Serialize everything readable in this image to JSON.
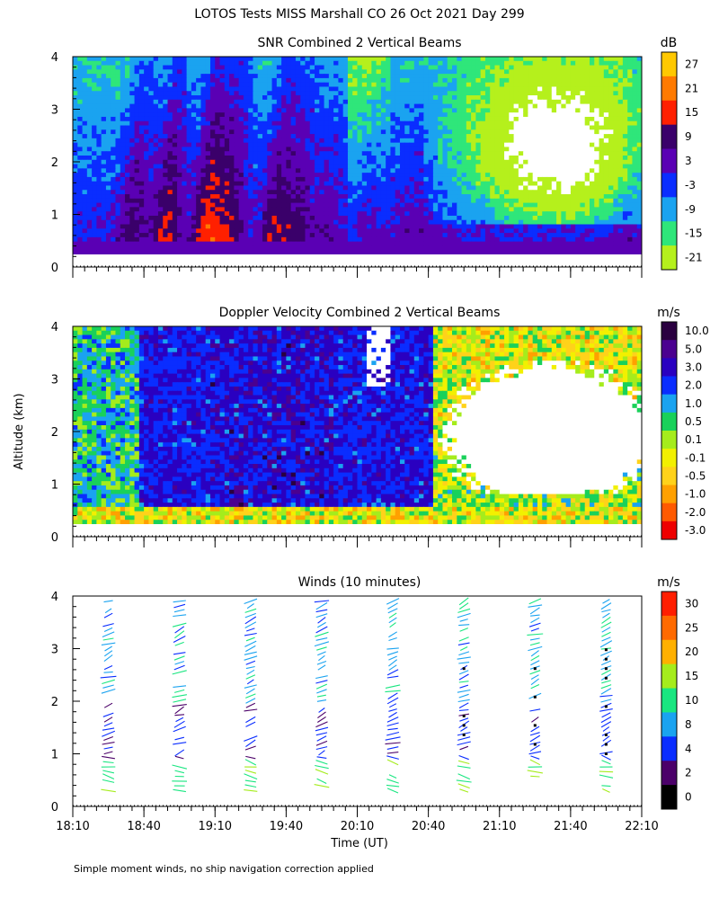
{
  "title": "LOTOS Tests MISS Marshall CO  26 Oct 2021 Day 299",
  "ylabel": "Altitude (km)",
  "xlabel": "Time (UT)",
  "footnote": "Simple moment winds, no ship navigation correction applied",
  "colors": {
    "palette": [
      "#000000",
      "#4b0069",
      "#3d00c8",
      "#0a2dff",
      "#1aa3f0",
      "#19d15a",
      "#2fe67a",
      "#a5ec1c",
      "#f2e400",
      "#ffd21a",
      "#ffb000",
      "#ff7a00",
      "#ff3a00",
      "#e90000"
    ]
  },
  "chart_data": [
    {
      "type": "heatmap",
      "title": "SNR Combined 2 Vertical Beams",
      "unit": "dB",
      "x_ticks": [
        "18:10",
        "18:40",
        "19:10",
        "19:40",
        "20:10",
        "20:40",
        "21:10",
        "21:40",
        "22:10"
      ],
      "x_range": [
        "18:10",
        "22:10"
      ],
      "y_ticks": [
        0,
        1,
        2,
        3,
        4
      ],
      "ylim": [
        0,
        4
      ],
      "colorbar_labels": [
        "27",
        "21",
        "15",
        "9",
        "3",
        "-3",
        "-9",
        "-15",
        "-21"
      ],
      "colorbar_colors": [
        "#ffc800",
        "#ff7a00",
        "#ff2000",
        "#3a006a",
        "#5a00b4",
        "#0a2dff",
        "#1aa3f0",
        "#2fe67a",
        "#b5f01c"
      ],
      "colorbar_range": [
        -21,
        33
      ]
    },
    {
      "type": "heatmap",
      "title": "Doppler Velocity Combined 2 Vertical Beams",
      "unit": "m/s",
      "x_ticks": [
        "18:10",
        "18:40",
        "19:10",
        "19:40",
        "20:10",
        "20:40",
        "21:10",
        "21:40",
        "22:10"
      ],
      "x_range": [
        "18:10",
        "22:10"
      ],
      "y_ticks": [
        0,
        1,
        2,
        3,
        4
      ],
      "ylim": [
        0,
        4
      ],
      "colorbar_labels": [
        "10.0",
        "5.0",
        "3.0",
        "2.0",
        "1.0",
        "0.5",
        "0.1",
        "-0.1",
        "-0.5",
        "-1.0",
        "-2.0",
        "-3.0"
      ],
      "colorbar_colors": [
        "#2a0040",
        "#4b0090",
        "#2a00c0",
        "#0a2dff",
        "#1aa3f0",
        "#19d15a",
        "#a5ec1c",
        "#f2f000",
        "#ffd21a",
        "#ffa000",
        "#ff5a00",
        "#ee0000"
      ]
    },
    {
      "type": "scatter",
      "title": "Winds (10 minutes)",
      "unit": "m/s",
      "x_ticks": [
        "18:10",
        "18:40",
        "19:10",
        "19:40",
        "20:10",
        "20:40",
        "21:10",
        "21:40",
        "22:10"
      ],
      "x_range": [
        "18:10",
        "22:10"
      ],
      "y_ticks": [
        0,
        1,
        2,
        3,
        4
      ],
      "ylim": [
        0,
        4
      ],
      "colorbar_labels": [
        "30",
        "25",
        "20",
        "15",
        "10",
        "8",
        "4",
        "2",
        "0"
      ],
      "colorbar_colors": [
        "#ff1e00",
        "#ff6a00",
        "#ffb000",
        "#a5ec1c",
        "#19e680",
        "#1aa3f0",
        "#0a2dff",
        "#4b0069",
        "#000000"
      ],
      "profile_times": [
        "18:25",
        "18:55",
        "19:25",
        "19:55",
        "20:25",
        "20:55",
        "21:25",
        "21:55"
      ]
    }
  ]
}
